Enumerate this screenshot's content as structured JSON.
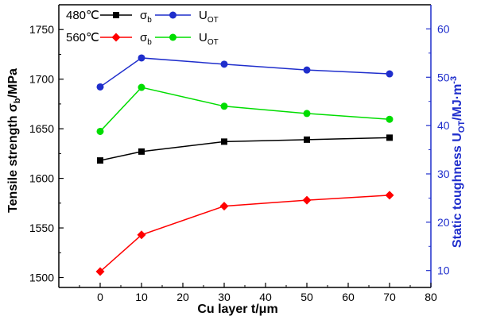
{
  "chart_data": {
    "type": "line",
    "x": [
      0,
      10,
      30,
      50,
      70
    ],
    "xlabel": "Cu layer t/μm",
    "xlim": [
      -10,
      80
    ],
    "xticks": [
      0,
      10,
      20,
      30,
      40,
      50,
      60,
      70,
      80
    ],
    "ylabel_left": {
      "main": "Tensile strength σ",
      "sub": "b",
      "tail": "/MPa"
    },
    "ylim_left": [
      1490,
      1775
    ],
    "yticks_left": [
      1500,
      1550,
      1600,
      1650,
      1700,
      1750
    ],
    "ylabel_right": {
      "main": "Static toughness U",
      "sub": "OT",
      "tail": "/MJ·m",
      "sup": "-3"
    },
    "ylim_right": [
      6.5,
      65.0
    ],
    "yticks_right": [
      10,
      20,
      30,
      40,
      50,
      60
    ],
    "series": [
      {
        "name": "σb",
        "temp": "480℃",
        "axis": "left",
        "color": "#000000",
        "marker": "square",
        "values": [
          1618,
          1627,
          1637,
          1639,
          1641
        ]
      },
      {
        "name": "σb",
        "temp": "560℃",
        "axis": "left",
        "color": "#ff0000",
        "marker": "diamond",
        "values": [
          1506,
          1543,
          1572,
          1578,
          1583
        ]
      },
      {
        "name": "UOT",
        "temp": "480℃",
        "axis": "right",
        "color": "#1f2ecc",
        "marker": "circle",
        "values": [
          48.0,
          54.0,
          52.7,
          51.5,
          50.7
        ]
      },
      {
        "name": "UOT",
        "temp": "560℃",
        "axis": "right",
        "color": "#00dd00",
        "marker": "circle",
        "values": [
          38.8,
          47.9,
          44.0,
          42.5,
          41.3
        ]
      }
    ],
    "legend": {
      "placement": "top-left",
      "rows": [
        {
          "temp": "480℃",
          "items": [
            {
              "sym": "σ",
              "sub": "b",
              "color": "#000000",
              "marker": "square"
            },
            {
              "sym": "U",
              "sub": "OT",
              "color": "#1f2ecc",
              "marker": "circle"
            }
          ]
        },
        {
          "temp": "560℃",
          "items": [
            {
              "sym": "σ",
              "sub": "b",
              "color": "#ff0000",
              "marker": "diamond"
            },
            {
              "sym": "U",
              "sub": "OT",
              "color": "#00dd00",
              "marker": "circle"
            }
          ]
        }
      ]
    },
    "grid": false
  }
}
